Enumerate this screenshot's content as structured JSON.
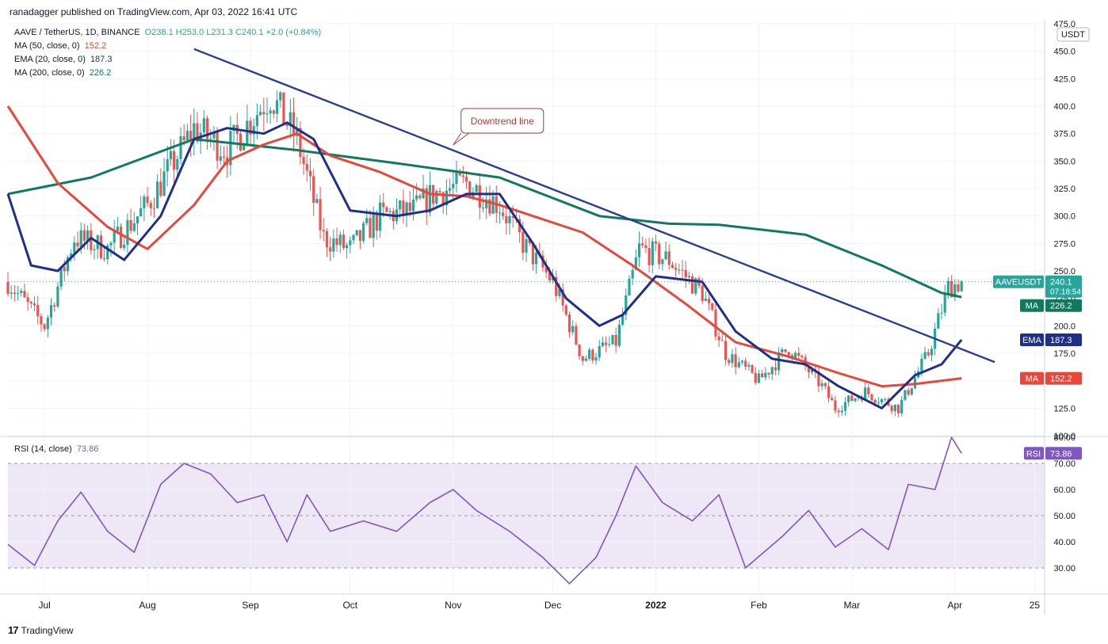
{
  "publisher": "ranadagger published on TradingView.com, Apr 03, 2022 16:41 UTC",
  "footer": "TradingView",
  "legend": {
    "symbol": "AAVE / TetherUS, 1D, BINANCE",
    "ohlc": "O238.1  H253.0  L231.3  C240.1  +2.0 (+0.84%)",
    "ma50_label": "MA (50, close, 0)",
    "ma50_value": "152.2",
    "ema20_label": "EMA (20, close, 0)",
    "ema20_value": "187.3",
    "ma200_label": "MA (200, close, 0)",
    "ma200_value": "226.2",
    "rsi_label": "RSI (14, close)",
    "rsi_value": "73.86"
  },
  "colors": {
    "up": "#26a69a",
    "down": "#ef5350",
    "ma50": "#e8483b",
    "ema20": "#1f2f8a",
    "ma200": "#107a5e",
    "trendline": "#2b3f8f",
    "rsi": "#7e57c2",
    "rsi_band": "#ede7f6",
    "annotation": "#b2372e"
  },
  "chart_data": {
    "type": "candlestick",
    "symbol": "AAVEUSDT",
    "currency": "USDT",
    "timeframe": "1D",
    "price_axis": {
      "ylim": [
        100,
        475
      ],
      "ticks": [
        100.0,
        125.0,
        150.0,
        175.0,
        200.0,
        225.0,
        250.0,
        275.0,
        300.0,
        325.0,
        350.0,
        375.0,
        400.0,
        425.0,
        450.0,
        475.0
      ]
    },
    "rsi_axis": {
      "ylim": [
        20,
        80
      ],
      "ticks": [
        30.0,
        40.0,
        50.0,
        60.0,
        70.0,
        80.0
      ],
      "band": [
        30,
        70
      ]
    },
    "x_ticks": [
      "Jul",
      "Aug",
      "Sep",
      "Oct",
      "Nov",
      "Dec",
      "2022",
      "Feb",
      "Mar",
      "Apr",
      "25"
    ],
    "x_range": [
      "2021-06-20",
      "2022-04-28"
    ],
    "last_price": {
      "label": "AAVEUSDT",
      "value": "240.1",
      "countdown": "07:18:54"
    },
    "price_tags": [
      {
        "label": "MA",
        "value": "226.2"
      },
      {
        "label": "EMA",
        "value": "187.3"
      },
      {
        "label": "MA",
        "value": "152.2"
      }
    ],
    "rsi_tag": {
      "label": "RSI",
      "value": "73.86"
    },
    "annotation": "Downtrend line",
    "trendline": [
      [
        "2021-08-15",
        452
      ],
      [
        "2022-04-13",
        167
      ]
    ],
    "series": [
      {
        "name": "Price (close)",
        "x": [
          "2021-06-20",
          "2021-07-01",
          "2021-07-10",
          "2021-07-20",
          "2021-08-01",
          "2021-08-15",
          "2021-08-25",
          "2021-09-07",
          "2021-09-15",
          "2021-09-23",
          "2021-10-01",
          "2021-10-10",
          "2021-10-20",
          "2021-10-26",
          "2021-11-05",
          "2021-11-15",
          "2021-11-22",
          "2021-12-01",
          "2021-12-10",
          "2021-12-20",
          "2021-12-27",
          "2022-01-05",
          "2022-01-15",
          "2022-01-22",
          "2022-02-01",
          "2022-02-10",
          "2022-02-20",
          "2022-02-24",
          "2022-03-05",
          "2022-03-15",
          "2022-03-24",
          "2022-03-30",
          "2022-04-03"
        ],
        "values": [
          240,
          200,
          280,
          270,
          310,
          380,
          360,
          410,
          370,
          280,
          270,
          300,
          305,
          320,
          330,
          310,
          275,
          240,
          170,
          185,
          270,
          260,
          230,
          175,
          150,
          180,
          145,
          125,
          140,
          125,
          175,
          235,
          240
        ]
      },
      {
        "name": "MA (50, close, 0)",
        "x": [
          "2021-06-20",
          "2021-07-05",
          "2021-07-20",
          "2021-08-01",
          "2021-08-15",
          "2021-08-25",
          "2021-09-05",
          "2021-09-15",
          "2021-09-25",
          "2021-10-10",
          "2021-10-25",
          "2021-11-05",
          "2021-11-15",
          "2021-11-25",
          "2021-12-10",
          "2021-12-25",
          "2022-01-10",
          "2022-01-25",
          "2022-02-10",
          "2022-02-25",
          "2022-03-10",
          "2022-03-20",
          "2022-04-03"
        ],
        "values": [
          400,
          330,
          290,
          270,
          310,
          350,
          365,
          375,
          355,
          340,
          320,
          318,
          310,
          300,
          285,
          255,
          220,
          185,
          172,
          157,
          145,
          147,
          152.2
        ]
      },
      {
        "name": "EMA (20, close, 0)",
        "x": [
          "2021-06-20",
          "2021-06-27",
          "2021-07-05",
          "2021-07-15",
          "2021-07-25",
          "2021-08-05",
          "2021-08-15",
          "2021-08-25",
          "2021-09-05",
          "2021-09-12",
          "2021-09-20",
          "2021-10-01",
          "2021-10-15",
          "2021-10-25",
          "2021-11-05",
          "2021-11-15",
          "2021-11-25",
          "2021-12-05",
          "2021-12-15",
          "2021-12-22",
          "2022-01-01",
          "2022-01-15",
          "2022-01-25",
          "2022-02-05",
          "2022-02-15",
          "2022-02-25",
          "2022-03-10",
          "2022-03-20",
          "2022-03-28",
          "2022-04-03"
        ],
        "values": [
          320,
          255,
          250,
          280,
          260,
          300,
          370,
          380,
          375,
          385,
          370,
          305,
          300,
          305,
          320,
          320,
          275,
          225,
          200,
          210,
          245,
          240,
          195,
          170,
          165,
          145,
          125,
          155,
          165,
          187.3
        ]
      },
      {
        "name": "MA (200, close, 0)",
        "x": [
          "2021-06-20",
          "2021-07-15",
          "2021-08-15",
          "2021-09-15",
          "2021-10-15",
          "2021-11-15",
          "2021-12-15",
          "2022-01-05",
          "2022-01-20",
          "2022-02-15",
          "2022-03-10",
          "2022-03-28",
          "2022-04-03"
        ],
        "values": [
          320,
          335,
          370,
          360,
          348,
          335,
          300,
          293,
          292,
          283,
          255,
          230,
          226.2
        ]
      },
      {
        "name": "RSI (14, close)",
        "x": [
          "2021-06-20",
          "2021-06-28",
          "2021-07-05",
          "2021-07-12",
          "2021-07-20",
          "2021-07-28",
          "2021-08-05",
          "2021-08-12",
          "2021-08-20",
          "2021-08-28",
          "2021-09-05",
          "2021-09-12",
          "2021-09-18",
          "2021-09-25",
          "2021-10-05",
          "2021-10-15",
          "2021-10-25",
          "2021-11-01",
          "2021-11-08",
          "2021-11-18",
          "2021-11-28",
          "2021-12-06",
          "2021-12-14",
          "2021-12-20",
          "2021-12-26",
          "2022-01-03",
          "2022-01-12",
          "2022-01-20",
          "2022-01-28",
          "2022-02-08",
          "2022-02-16",
          "2022-02-24",
          "2022-03-04",
          "2022-03-12",
          "2022-03-18",
          "2022-03-26",
          "2022-03-31",
          "2022-04-03"
        ],
        "values": [
          39,
          31,
          48,
          59,
          44,
          36,
          62,
          70,
          66,
          55,
          58,
          40,
          58,
          44,
          48,
          44,
          55,
          60,
          52,
          44,
          34,
          24,
          34,
          50,
          69,
          55,
          48,
          58,
          30,
          42,
          52,
          38,
          45,
          37,
          62,
          60,
          80,
          73.86
        ]
      }
    ]
  }
}
